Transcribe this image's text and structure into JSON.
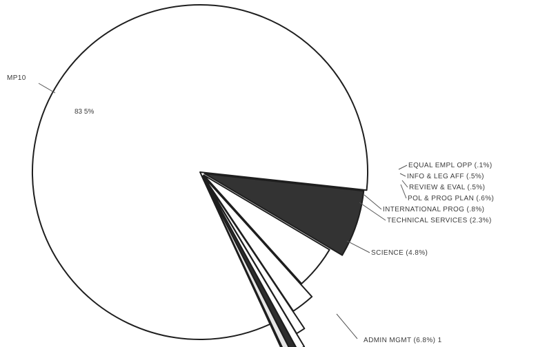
{
  "chart_data": {
    "type": "pie",
    "title": "",
    "slices": [
      {
        "label": "MP10",
        "value": 83.5,
        "display": "83 5%",
        "callout": "MP10",
        "fill": "#ffffff",
        "exploded": false
      },
      {
        "label": "EQUAL EMPL OPP",
        "value": 0.1,
        "callout": "EQUAL EMPL OPP (.1%)",
        "fill": "#ffffff",
        "exploded": true
      },
      {
        "label": "INFO & LEG AFF",
        "value": 0.5,
        "callout": "INFO & LEG AFF (.5%)",
        "fill": "#e6e6e6",
        "exploded": true
      },
      {
        "label": "REVIEW & EVAL",
        "value": 0.5,
        "callout": "REVIEW & EVAL (.5%)",
        "fill": "#2e2e2e",
        "exploded": true
      },
      {
        "label": "POL & PROG PLAN",
        "value": 0.6,
        "callout": "POL & PROG PLAN (.6%)",
        "fill": "#ffffff",
        "exploded": true
      },
      {
        "label": "INTERNATIONAL PROG",
        "value": 0.8,
        "callout": "INTERNATIONAL PROG (.8%)",
        "fill": "#ffffff",
        "exploded": true
      },
      {
        "label": "TECHNICAL SERVICES",
        "value": 2.3,
        "callout": "TECHNICAL SERVICES (2.3%)",
        "fill": "#ffffff",
        "exploded": true
      },
      {
        "label": "SCIENCE",
        "value": 4.8,
        "callout": "SCIENCE (4.8%)",
        "fill": "#ffffff",
        "exploded": true
      },
      {
        "label": "ADMIN MGMT",
        "value": 6.8,
        "callout": "ADMIN MGMT (6.8%) 1",
        "fill": "#333333",
        "exploded": true
      }
    ]
  }
}
